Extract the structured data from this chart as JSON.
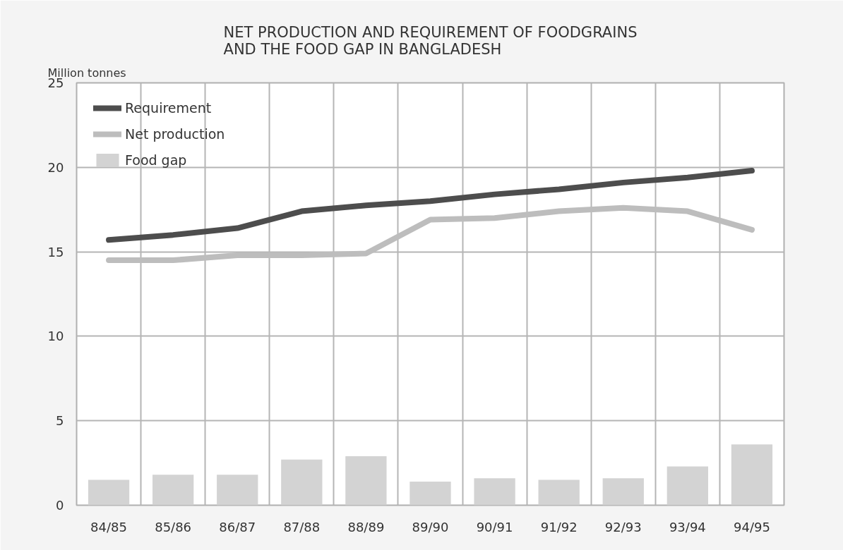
{
  "chart_data": {
    "type": "line",
    "title": "NET PRODUCTION AND REQUIREMENT OF FOODGRAINS\nAND THE FOOD GAP IN BANGLADESH",
    "ylabel": "Million tonnes",
    "categories": [
      "84/85",
      "85/86",
      "86/87",
      "87/88",
      "88/89",
      "89/90",
      "90/91",
      "91/92",
      "92/93",
      "93/94",
      "94/95"
    ],
    "series": [
      {
        "name": "Requirement",
        "color": "#4d4d4d",
        "values": [
          15.7,
          16.0,
          16.4,
          17.4,
          17.75,
          18.0,
          18.4,
          18.7,
          19.1,
          19.4,
          19.8
        ]
      },
      {
        "name": "Net production",
        "color": "#bdbdbd",
        "values": [
          14.5,
          14.5,
          14.8,
          14.8,
          14.9,
          16.9,
          17.0,
          17.4,
          17.6,
          17.4,
          16.3
        ]
      },
      {
        "name": "Food gap",
        "type": "bar",
        "color": "#d3d3d3",
        "values": [
          1.5,
          1.8,
          1.8,
          2.7,
          2.9,
          1.4,
          1.6,
          1.5,
          1.6,
          2.3,
          3.6
        ]
      }
    ],
    "ylim": [
      0,
      25
    ],
    "yticks": [
      0,
      5,
      10,
      15,
      20,
      25
    ],
    "grid": true,
    "legend": "top left"
  }
}
